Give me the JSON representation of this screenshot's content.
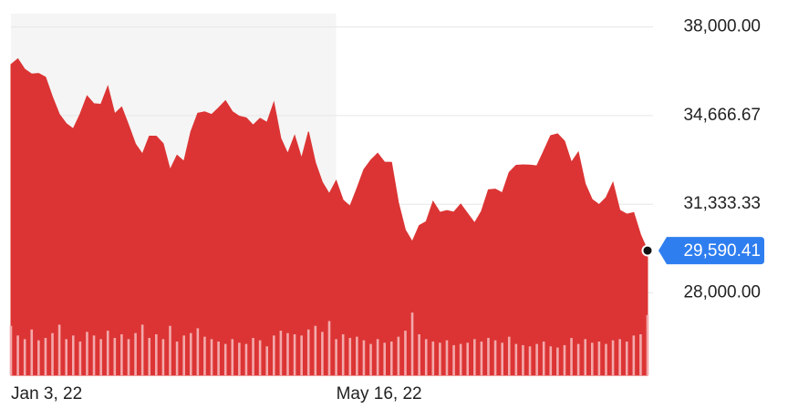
{
  "chart_data": {
    "type": "area",
    "categories": [
      "Jan 3, 22",
      null,
      null,
      null,
      null,
      null,
      null,
      null,
      null,
      null,
      null,
      null,
      null,
      null,
      null,
      null,
      null,
      null,
      null,
      null,
      null,
      null,
      null,
      null,
      null,
      null,
      null,
      null,
      null,
      null,
      null,
      null,
      null,
      null,
      null,
      null,
      null,
      null,
      null,
      null,
      null,
      null,
      null,
      null,
      null,
      null,
      null,
      "May 16, 22",
      null,
      null,
      null,
      null,
      null,
      null,
      null,
      null,
      null,
      null,
      null,
      null,
      null,
      null,
      null,
      null,
      null,
      null,
      null,
      null,
      null,
      null,
      null,
      null,
      null,
      null,
      null,
      null,
      null,
      null,
      null,
      null,
      null,
      null,
      null,
      null,
      null,
      null,
      null,
      null,
      null,
      null,
      null,
      null,
      null
    ],
    "values": [
      36585,
      36799,
      36407,
      36231,
      36252,
      36113,
      35368,
      34715,
      34364,
      34168,
      34725,
      35405,
      35111,
      35091,
      35768,
      34738,
      34988,
      34312,
      33596,
      33223,
      33892,
      33891,
      33614,
      32632,
      33174,
      32945,
      34063,
      34754,
      34807,
      34707,
      34955,
      35228,
      34818,
      34641,
      34583,
      34308,
      34564,
      34411,
      35161,
      33811,
      33240,
      33916,
      33061,
      34061,
      32899,
      32160,
      31730,
      32223,
      31490,
      31262,
      31928,
      32637,
      32990,
      33248,
      32915,
      32910,
      31393,
      30365,
      29927,
      30530,
      30677,
      31438,
      31029,
      31097,
      31037,
      31338,
      30982,
      30630,
      31072,
      31875,
      31899,
      31762,
      32529,
      32798,
      32813,
      32803,
      32775,
      33336,
      33913,
      33981,
      33707,
      32910,
      33292,
      32098,
      31510,
      31318,
      31581,
      32151,
      31105,
      30961,
      31020,
      30184,
      29590.41
    ],
    "color": "#dc3434",
    "volume": [
      410,
      330,
      300,
      380,
      290,
      310,
      350,
      420,
      300,
      330,
      280,
      360,
      330,
      300,
      370,
      310,
      340,
      300,
      350,
      420,
      310,
      340,
      300,
      410,
      280,
      330,
      350,
      390,
      320,
      300,
      280,
      260,
      300,
      270,
      260,
      310,
      290,
      240,
      330,
      370,
      350,
      340,
      330,
      380,
      410,
      360,
      450,
      300,
      340,
      310,
      320,
      290,
      260,
      300,
      270,
      280,
      320,
      370,
      520,
      340,
      300,
      280,
      270,
      290,
      250,
      260,
      270,
      300,
      280,
      310,
      290,
      270,
      320,
      260,
      250,
      240,
      260,
      280,
      240,
      230,
      250,
      310,
      260,
      300,
      270,
      280,
      260,
      290,
      300,
      280,
      330,
      340,
      500
    ],
    "volume_color": "#f3a9ab",
    "y2lim": [
      0,
      3000
    ],
    "ylim": [
      24900,
      38500
    ],
    "yticks": [
      {
        "value": 38000,
        "label": "38,000.00"
      },
      {
        "value": 34666.67,
        "label": "34,666.67"
      },
      {
        "value": 31333.33,
        "label": "31,333.33"
      },
      {
        "value": 28000,
        "label": "28,000.00"
      }
    ],
    "grid": true,
    "current": {
      "value": 29590.41,
      "label": "29,590.41"
    }
  }
}
